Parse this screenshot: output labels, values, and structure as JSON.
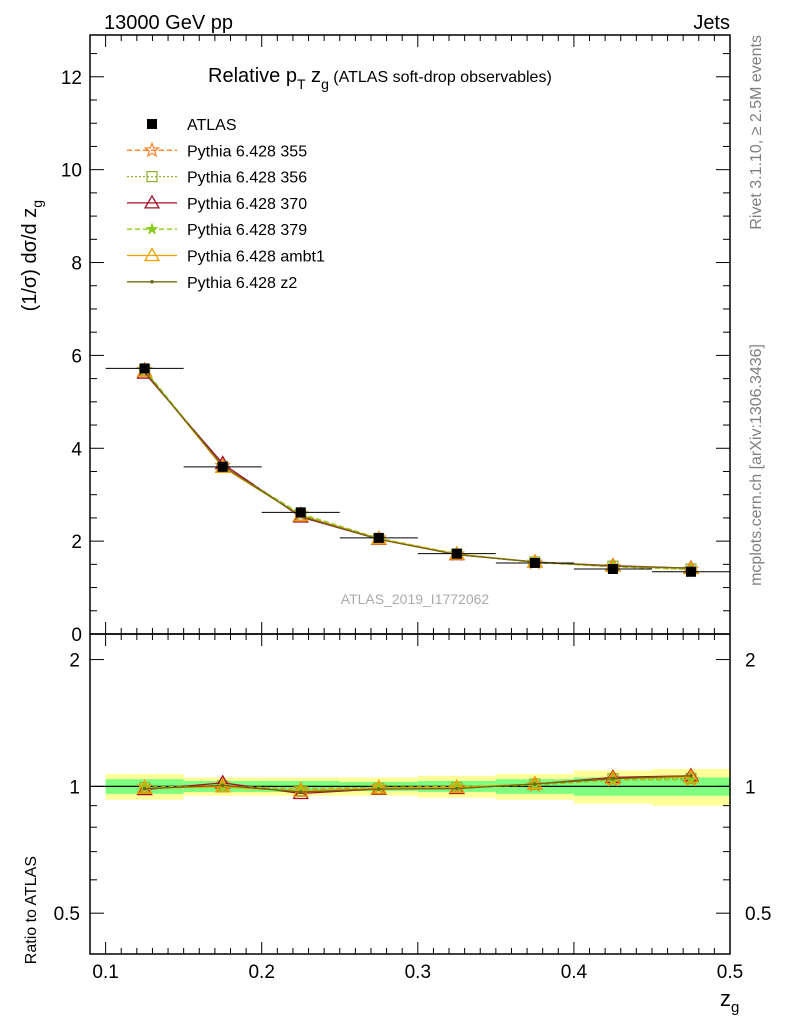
{
  "header": {
    "left": "13000 GeV pp",
    "right": "Jets"
  },
  "side_text": {
    "top": "Rivet 3.1.10, ≥ 2.5M events",
    "bottom": "mcplots.cern.ch [arXiv:1306.3436]"
  },
  "chart_data": {
    "type": "line",
    "title_prefix": "Relative p",
    "title_sub_T": "T",
    "title_mid": " z",
    "title_sub_g": "g",
    "title_suffix": " (ATLAS soft-drop observables)",
    "watermark": "ATLAS_2019_I1772062",
    "ylabel_prefix": "(1/σ) dσ/d z",
    "ylabel_sub": "g",
    "ratio_ylabel": "Ratio to ATLAS",
    "xlabel": "z",
    "xlabel_sub": "g",
    "xlim": [
      0.09,
      0.5
    ],
    "ylim": [
      0,
      12.9
    ],
    "ratio_ylim": [
      0.4,
      2.3
    ],
    "ratio_log": true,
    "x_ticks": [
      "0.1",
      "0.2",
      "0.3",
      "0.4",
      "0.5"
    ],
    "y_ticks": [
      "0",
      "2",
      "4",
      "6",
      "8",
      "10",
      "12"
    ],
    "ratio_ticks": [
      "0.5",
      "1",
      "2"
    ],
    "x": [
      0.125,
      0.175,
      0.225,
      0.275,
      0.325,
      0.375,
      0.425,
      0.475
    ],
    "bin_edges": [
      0.1,
      0.15,
      0.2,
      0.25,
      0.3,
      0.35,
      0.4,
      0.45,
      0.5
    ],
    "data": {
      "name": "ATLAS",
      "values": [
        5.72,
        3.6,
        2.62,
        2.07,
        1.73,
        1.53,
        1.4,
        1.34
      ],
      "color": "#000000",
      "band_inner": [
        0.04,
        0.03,
        0.03,
        0.025,
        0.03,
        0.04,
        0.05,
        0.05
      ],
      "band_outer": [
        0.07,
        0.05,
        0.05,
        0.05,
        0.06,
        0.07,
        0.09,
        0.1
      ],
      "band_inner_color": "#7fff7f",
      "band_outer_color": "#ffff99"
    },
    "legend_position": "top-left",
    "series": [
      {
        "name": "Pythia 6.428 355",
        "color": "#ff7f27",
        "dash": "5,3",
        "marker": "star",
        "values": [
          5.69,
          3.62,
          2.58,
          2.06,
          1.72,
          1.54,
          1.45,
          1.39
        ]
      },
      {
        "name": "Pythia 6.428 356",
        "color": "#8db32a",
        "dash": "2,2",
        "marker": "square",
        "values": [
          5.68,
          3.61,
          2.56,
          2.05,
          1.72,
          1.55,
          1.46,
          1.4
        ]
      },
      {
        "name": "Pythia 6.428 370",
        "color": "#a0102a",
        "dash": "",
        "marker": "triangle",
        "values": [
          5.62,
          3.67,
          2.52,
          2.04,
          1.71,
          1.55,
          1.47,
          1.42
        ]
      },
      {
        "name": "Pythia 6.428 379",
        "color": "#8ccc22",
        "dash": "5,3",
        "marker": "smallstar",
        "values": [
          5.7,
          3.6,
          2.59,
          2.06,
          1.73,
          1.54,
          1.45,
          1.39
        ]
      },
      {
        "name": "Pythia 6.428 ambt1",
        "color": "#f0a000",
        "dash": "",
        "marker": "triangle",
        "values": [
          5.66,
          3.59,
          2.55,
          2.05,
          1.72,
          1.55,
          1.46,
          1.41
        ]
      },
      {
        "name": "Pythia 6.428 z2",
        "color": "#6b6b10",
        "dash": "",
        "marker": "dot",
        "values": [
          5.65,
          3.62,
          2.54,
          2.04,
          1.71,
          1.55,
          1.46,
          1.42
        ]
      }
    ]
  }
}
